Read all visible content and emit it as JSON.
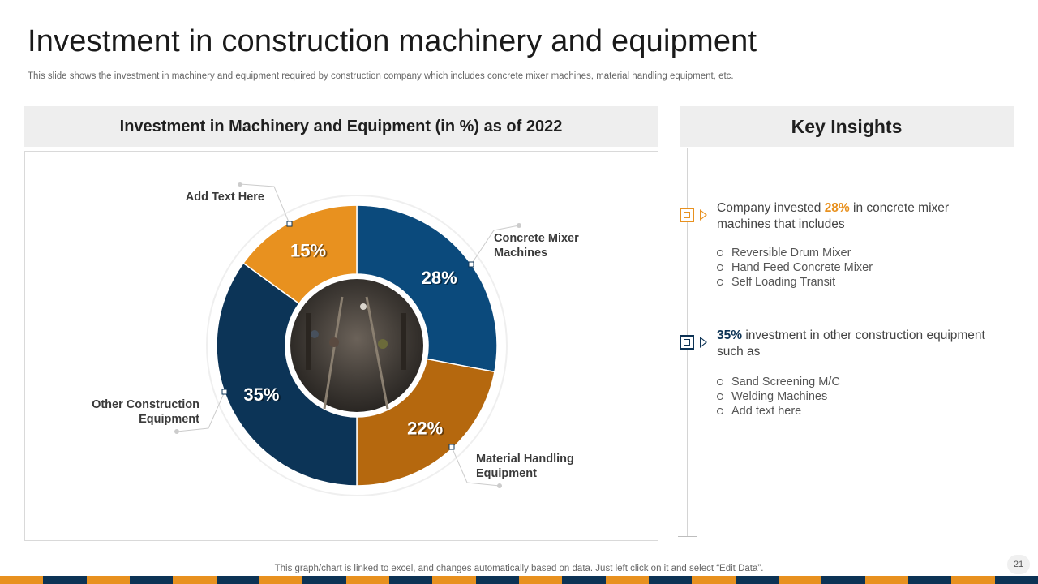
{
  "slide": {
    "title": "Investment in construction machinery and equipment",
    "subtitle": "This slide shows the investment in machinery and equipment required by construction company which includes concrete mixer machines, material handling equipment, etc.",
    "footnote": "This graph/chart is linked to excel,  and changes automatically based on data. Just left click on it and select “Edit Data”.",
    "page_number": "21"
  },
  "chart_data": {
    "type": "pie",
    "variant": "donut",
    "title": "Investment in Machinery and Equipment (in %) as of 2022",
    "categories": [
      "Concrete Mixer Machines",
      "Material Handling Equipment",
      "Other Construction Equipment",
      "Add  Text Here"
    ],
    "values": [
      28,
      22,
      35,
      15
    ],
    "value_labels": [
      "28%",
      "22%",
      "35%",
      "15%"
    ],
    "label_lines": [
      [
        "Concrete Mixer",
        "Machines"
      ],
      [
        "Material Handling",
        "Equipment"
      ],
      [
        "Other Construction",
        "Equipment"
      ],
      [
        "Add  Text Here"
      ]
    ],
    "colors": [
      "#0b4a7c",
      "#b5680e",
      "#0c3457",
      "#e8911f"
    ],
    "center_image": "construction-workers-photo"
  },
  "insights": {
    "title": "Key Insights",
    "item1": {
      "prefix": "Company invested ",
      "highlight": "28%",
      "suffix": " in concrete mixer machines that includes",
      "bullets": [
        "Reversible Drum Mixer",
        "Hand Feed Concrete Mixer",
        "Self Loading Transit"
      ]
    },
    "item2": {
      "prefix": "",
      "highlight": "35%",
      "suffix": " investment in other construction equipment such as",
      "bullets": [
        "Sand Screening M/C",
        "Welding Machines",
        "Add text here"
      ]
    }
  },
  "colors": {
    "orange": "#e8911f",
    "navy": "#0d3355",
    "stripe": [
      "#e8911f",
      "#0d3355"
    ]
  }
}
